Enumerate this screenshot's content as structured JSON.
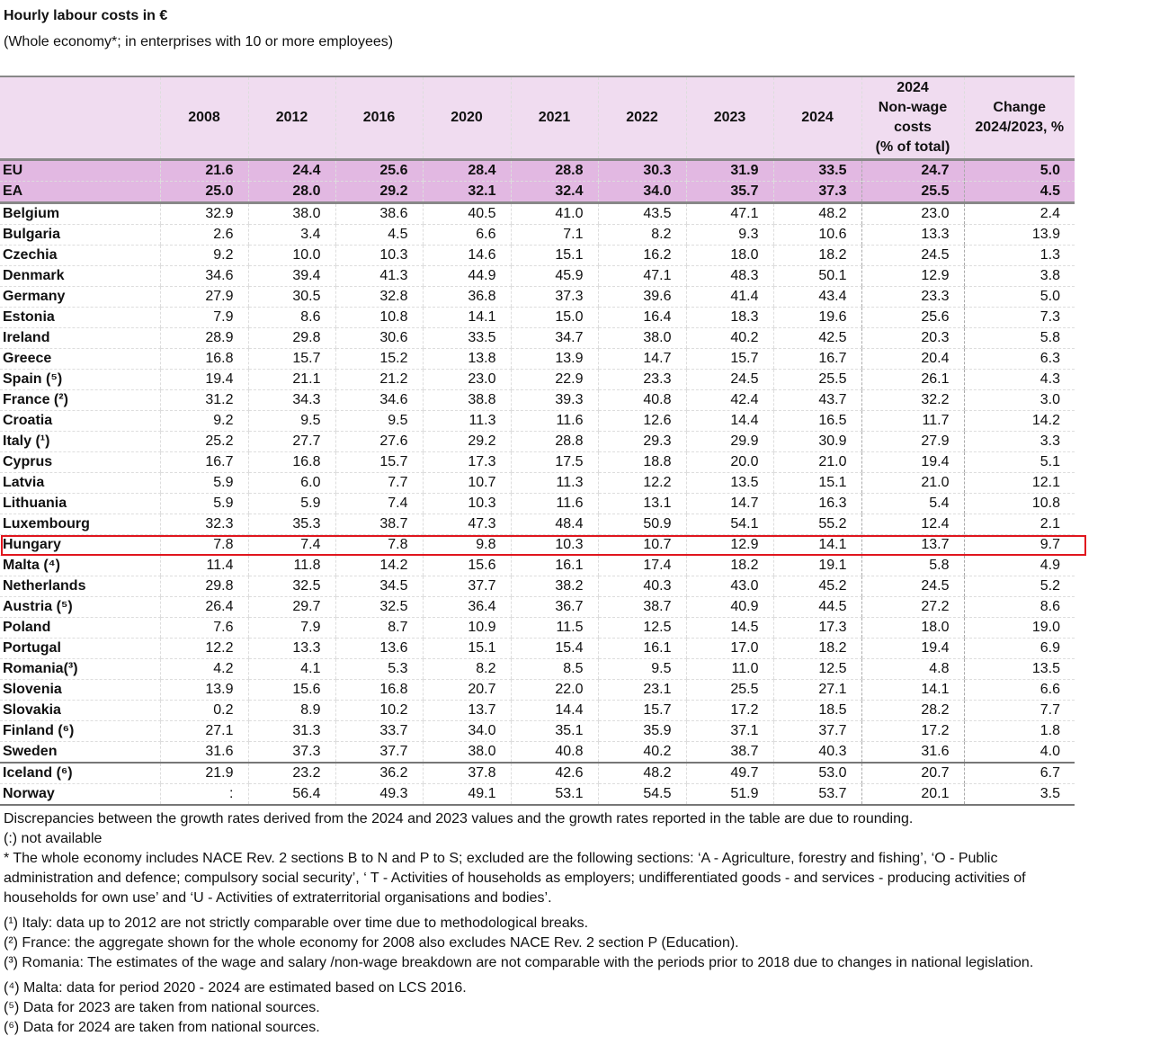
{
  "title": "Hourly labour costs in €",
  "subtitle": "(Whole economy*; in enterprises with 10 or more employees)",
  "columns": [
    "2008",
    "2012",
    "2016",
    "2020",
    "2021",
    "2022",
    "2023",
    "2024",
    "2024\nNon-wage\ncosts\n(% of total)",
    "Change\n2024/2023, %"
  ],
  "highlight_color": "#e0161e",
  "highlighted_row": "Hungary",
  "rows": [
    {
      "name": "EU",
      "values": [
        "21.6",
        "24.4",
        "25.6",
        "28.4",
        "28.8",
        "30.3",
        "31.9",
        "33.5",
        "24.7",
        "5.0"
      ]
    },
    {
      "name": "EA",
      "values": [
        "25.0",
        "28.0",
        "29.2",
        "32.1",
        "32.4",
        "34.0",
        "35.7",
        "37.3",
        "25.5",
        "4.5"
      ]
    },
    {
      "name": "Belgium",
      "values": [
        "32.9",
        "38.0",
        "38.6",
        "40.5",
        "41.0",
        "43.5",
        "47.1",
        "48.2",
        "23.0",
        "2.4"
      ]
    },
    {
      "name": "Bulgaria",
      "values": [
        "2.6",
        "3.4",
        "4.5",
        "6.6",
        "7.1",
        "8.2",
        "9.3",
        "10.6",
        "13.3",
        "13.9"
      ]
    },
    {
      "name": "Czechia",
      "values": [
        "9.2",
        "10.0",
        "10.3",
        "14.6",
        "15.1",
        "16.2",
        "18.0",
        "18.2",
        "24.5",
        "1.3"
      ]
    },
    {
      "name": "Denmark",
      "values": [
        "34.6",
        "39.4",
        "41.3",
        "44.9",
        "45.9",
        "47.1",
        "48.3",
        "50.1",
        "12.9",
        "3.8"
      ]
    },
    {
      "name": "Germany",
      "values": [
        "27.9",
        "30.5",
        "32.8",
        "36.8",
        "37.3",
        "39.6",
        "41.4",
        "43.4",
        "23.3",
        "5.0"
      ]
    },
    {
      "name": "Estonia",
      "values": [
        "7.9",
        "8.6",
        "10.8",
        "14.1",
        "15.0",
        "16.4",
        "18.3",
        "19.6",
        "25.6",
        "7.3"
      ]
    },
    {
      "name": "Ireland",
      "values": [
        "28.9",
        "29.8",
        "30.6",
        "33.5",
        "34.7",
        "38.0",
        "40.2",
        "42.5",
        "20.3",
        "5.8"
      ]
    },
    {
      "name": "Greece",
      "values": [
        "16.8",
        "15.7",
        "15.2",
        "13.8",
        "13.9",
        "14.7",
        "15.7",
        "16.7",
        "20.4",
        "6.3"
      ]
    },
    {
      "name": "Spain (⁵)",
      "values": [
        "19.4",
        "21.1",
        "21.2",
        "23.0",
        "22.9",
        "23.3",
        "24.5",
        "25.5",
        "26.1",
        "4.3"
      ]
    },
    {
      "name": "France (²)",
      "values": [
        "31.2",
        "34.3",
        "34.6",
        "38.8",
        "39.3",
        "40.8",
        "42.4",
        "43.7",
        "32.2",
        "3.0"
      ]
    },
    {
      "name": "Croatia",
      "values": [
        "9.2",
        "9.5",
        "9.5",
        "11.3",
        "11.6",
        "12.6",
        "14.4",
        "16.5",
        "11.7",
        "14.2"
      ]
    },
    {
      "name": "Italy (¹)",
      "values": [
        "25.2",
        "27.7",
        "27.6",
        "29.2",
        "28.8",
        "29.3",
        "29.9",
        "30.9",
        "27.9",
        "3.3"
      ]
    },
    {
      "name": "Cyprus",
      "values": [
        "16.7",
        "16.8",
        "15.7",
        "17.3",
        "17.5",
        "18.8",
        "20.0",
        "21.0",
        "19.4",
        "5.1"
      ]
    },
    {
      "name": "Latvia",
      "values": [
        "5.9",
        "6.0",
        "7.7",
        "10.7",
        "11.3",
        "12.2",
        "13.5",
        "15.1",
        "21.0",
        "12.1"
      ]
    },
    {
      "name": "Lithuania",
      "values": [
        "5.9",
        "5.9",
        "7.4",
        "10.3",
        "11.6",
        "13.1",
        "14.7",
        "16.3",
        "5.4",
        "10.8"
      ]
    },
    {
      "name": "Luxembourg",
      "values": [
        "32.3",
        "35.3",
        "38.7",
        "47.3",
        "48.4",
        "50.9",
        "54.1",
        "55.2",
        "12.4",
        "2.1"
      ]
    },
    {
      "name": "Hungary",
      "values": [
        "7.8",
        "7.4",
        "7.8",
        "9.8",
        "10.3",
        "10.7",
        "12.9",
        "14.1",
        "13.7",
        "9.7"
      ]
    },
    {
      "name": "Malta (⁴)",
      "values": [
        "11.4",
        "11.8",
        "14.2",
        "15.6",
        "16.1",
        "17.4",
        "18.2",
        "19.1",
        "5.8",
        "4.9"
      ]
    },
    {
      "name": "Netherlands",
      "values": [
        "29.8",
        "32.5",
        "34.5",
        "37.7",
        "38.2",
        "40.3",
        "43.0",
        "45.2",
        "24.5",
        "5.2"
      ]
    },
    {
      "name": "Austria (⁵)",
      "values": [
        "26.4",
        "29.7",
        "32.5",
        "36.4",
        "36.7",
        "38.7",
        "40.9",
        "44.5",
        "27.2",
        "8.6"
      ]
    },
    {
      "name": "Poland",
      "values": [
        "7.6",
        "7.9",
        "8.7",
        "10.9",
        "11.5",
        "12.5",
        "14.5",
        "17.3",
        "18.0",
        "19.0"
      ]
    },
    {
      "name": "Portugal",
      "values": [
        "12.2",
        "13.3",
        "13.6",
        "15.1",
        "15.4",
        "16.1",
        "17.0",
        "18.2",
        "19.4",
        "6.9"
      ]
    },
    {
      "name": "Romania(³)",
      "values": [
        "4.2",
        "4.1",
        "5.3",
        "8.2",
        "8.5",
        "9.5",
        "11.0",
        "12.5",
        "4.8",
        "13.5"
      ]
    },
    {
      "name": "Slovenia",
      "values": [
        "13.9",
        "15.6",
        "16.8",
        "20.7",
        "22.0",
        "23.1",
        "25.5",
        "27.1",
        "14.1",
        "6.6"
      ]
    },
    {
      "name": "Slovakia",
      "values": [
        "0.2",
        "8.9",
        "10.2",
        "13.7",
        "14.4",
        "15.7",
        "17.2",
        "18.5",
        "28.2",
        "7.7"
      ]
    },
    {
      "name": "Finland (⁶)",
      "values": [
        "27.1",
        "31.3",
        "33.7",
        "34.0",
        "35.1",
        "35.9",
        "37.1",
        "37.7",
        "17.2",
        "1.8"
      ]
    },
    {
      "name": "Sweden",
      "values": [
        "31.6",
        "37.3",
        "37.7",
        "38.0",
        "40.8",
        "40.2",
        "38.7",
        "40.3",
        "31.6",
        "4.0"
      ]
    },
    {
      "name": "Iceland (⁶)",
      "values": [
        "21.9",
        "23.2",
        "36.2",
        "37.8",
        "42.6",
        "48.2",
        "49.7",
        "53.0",
        "20.7",
        "6.7"
      ]
    },
    {
      "name": "Norway",
      "values": [
        ":",
        "56.4",
        "49.3",
        "49.1",
        "53.1",
        "54.5",
        "51.9",
        "53.7",
        "20.1",
        "3.5"
      ]
    }
  ],
  "notes": {
    "discrepancy": "Discrepancies between the growth rates derived from the 2024 and 2023 values and the growth rates reported in the table are due to rounding.",
    "not_available": "(:) not available",
    "whole_economy": "* The whole economy includes NACE Rev. 2 sections B to N and P to S; excluded are the following sections: ‘A - Agriculture, forestry and fishing’, ‘O - Public administration and defence; compulsory social security’, ‘ T - Activities of households as employers; undifferentiated goods - and services - producing activities of households for own use’ and ‘U - Activities of extraterritorial organisations and bodies’.",
    "fn1": "(¹) Italy: data up to 2012 are not strictly comparable over time due to methodological breaks.",
    "fn2": "(²) France: the aggregate shown for the whole economy for 2008 also excludes NACE Rev. 2 section P (Education).",
    "fn3": "(³) Romania: The estimates of the wage and salary /non-wage breakdown are not comparable with the periods prior to 2018 due to changes in national legislation.",
    "fn4": "(⁴) Malta: data for period 2020 - 2024 are estimated based on LCS 2016.",
    "fn5": "(⁵) Data for 2023 are taken from national sources.",
    "fn6": "(⁶) Data for 2024 are taken from national sources."
  }
}
